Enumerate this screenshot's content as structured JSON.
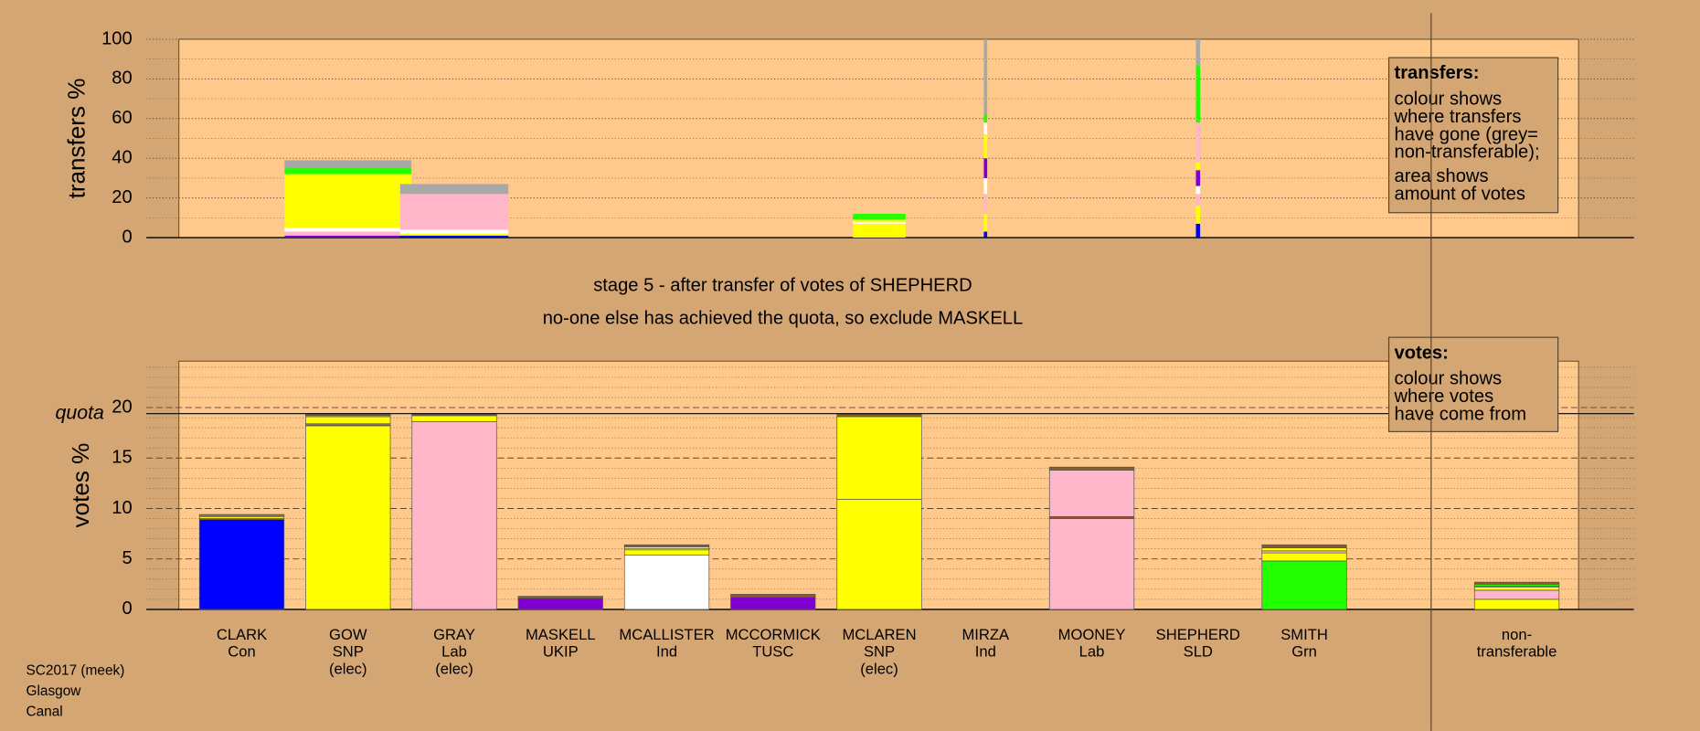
{
  "chart_data": [
    {
      "type": "bar",
      "stacked": true,
      "ylabel": "transfers %",
      "ylim": [
        0,
        100
      ],
      "yticks": [
        0,
        20,
        40,
        60,
        80,
        100
      ],
      "minor_grid": 10,
      "note_title": "transfers:",
      "note_lines": [
        "colour shows",
        "where transfers",
        "have gone (grey=",
        "non-transferable);",
        "area shows",
        "amount of votes"
      ],
      "stacks": [
        {
          "segments": []
        },
        {
          "width": 1.5,
          "segments": [
            {
              "color": "#8000d0",
              "value": 1
            },
            {
              "color": "#ffb6c8",
              "value": 2
            },
            {
              "color": "#ffffff",
              "value": 2
            },
            {
              "color": "#ffff00",
              "value": 27
            },
            {
              "color": "#22ff00",
              "value": 3
            },
            {
              "color": "#a8a8a8",
              "value": 4
            }
          ]
        },
        {
          "width": 1.28,
          "segments": [
            {
              "color": "#0000ff",
              "value": 1
            },
            {
              "color": "#ffff00",
              "value": 1
            },
            {
              "color": "#ffffff",
              "value": 2
            },
            {
              "color": "#ffb6c8",
              "value": 18
            },
            {
              "color": "#a8a8a8",
              "value": 5
            }
          ]
        },
        {
          "segments": []
        },
        {
          "segments": []
        },
        {
          "segments": []
        },
        {
          "width": 0.62,
          "segments": [
            {
              "color": "#ffff00",
              "value": 7
            },
            {
              "color": "#ffffff",
              "value": 1
            },
            {
              "color": "#ffff00",
              "value": 1
            },
            {
              "color": "#22ff00",
              "value": 3
            }
          ]
        },
        {
          "width": 0.04,
          "segments": [
            {
              "color": "#0000ff",
              "value": 3
            },
            {
              "color": "#ffff00",
              "value": 9
            },
            {
              "color": "#ffb6c8",
              "value": 10
            },
            {
              "color": "#ffffff",
              "value": 8
            },
            {
              "color": "#8000d0",
              "value": 10
            },
            {
              "color": "#ffff00",
              "value": 12
            },
            {
              "color": "#ffffff",
              "value": 6
            },
            {
              "color": "#22ff00",
              "value": 4
            },
            {
              "color": "#a8a8a8",
              "value": 38
            }
          ]
        },
        {
          "segments": []
        },
        {
          "width": 0.05,
          "segments": [
            {
              "color": "#0000ff",
              "value": 7
            },
            {
              "color": "#ffff00",
              "value": 9
            },
            {
              "color": "#ffb6c8",
              "value": 6
            },
            {
              "color": "#ffffff",
              "value": 4
            },
            {
              "color": "#8000d0",
              "value": 8
            },
            {
              "color": "#ffff00",
              "value": 4
            },
            {
              "color": "#ffb6c8",
              "value": 20
            },
            {
              "color": "#22ff00",
              "value": 29
            },
            {
              "color": "#a8a8a8",
              "value": 13
            }
          ]
        },
        {
          "segments": []
        },
        {
          "segments": []
        }
      ]
    },
    {
      "type": "bar",
      "stacked": true,
      "ylabel": "votes %",
      "ylim": [
        0,
        24.6
      ],
      "yticks": [
        0,
        5,
        10,
        15,
        20
      ],
      "minor_grid": 1,
      "quota": 19.4,
      "quota_label": "quota",
      "note_title": "votes:",
      "note_lines": [
        "colour shows",
        "where votes",
        "have come from"
      ],
      "categories": [
        [
          "CLARK",
          "Con"
        ],
        [
          "GOW",
          "SNP",
          "(elec)"
        ],
        [
          "GRAY",
          "Lab",
          "(elec)"
        ],
        [
          "MASKELL",
          "UKIP"
        ],
        [
          "MCALLISTER",
          "Ind"
        ],
        [
          "MCCORMICK",
          "TUSC"
        ],
        [
          "MCLAREN",
          "SNP",
          "(elec)"
        ],
        [
          "MIRZA",
          "Ind"
        ],
        [
          "MOONEY",
          "Lab"
        ],
        [
          "SHEPHERD",
          "SLD"
        ],
        [
          "SMITH",
          "Grn"
        ],
        [
          "non-",
          "transferable"
        ]
      ],
      "stacks": [
        {
          "segments": [
            {
              "color": "#0000ff",
              "value": 8.9
            },
            {
              "color": "#8b5a2b",
              "value": 0.1
            },
            {
              "color": "#ffff00",
              "value": 0.2
            },
            {
              "color": "#ffb6c8",
              "value": 0.1
            },
            {
              "color": "#8b5a2b",
              "value": 0.1
            }
          ]
        },
        {
          "segments": [
            {
              "color": "#ffff00",
              "value": 18.2
            },
            {
              "color": "#8b5a2b",
              "value": 0.1
            },
            {
              "color": "#ffb6c8",
              "value": 0.1
            },
            {
              "color": "#ffff00",
              "value": 0.7
            },
            {
              "color": "#ffffff",
              "value": 0.1
            },
            {
              "color": "#8b5a2b",
              "value": 0.2
            }
          ]
        },
        {
          "segments": [
            {
              "color": "#ffb6c8",
              "value": 18.6
            },
            {
              "color": "#ffff00",
              "value": 0.6
            },
            {
              "color": "#8b5a2b",
              "value": 0.2
            }
          ]
        },
        {
          "segments": [
            {
              "color": "#8000d0",
              "value": 1.1
            },
            {
              "color": "#8b5a2b",
              "value": 0.2
            }
          ]
        },
        {
          "segments": [
            {
              "color": "#ffffff",
              "value": 5.4
            },
            {
              "color": "#ffff00",
              "value": 0.5
            },
            {
              "color": "#ffffff",
              "value": 0.1
            },
            {
              "color": "#ffff00",
              "value": 0.2
            },
            {
              "color": "#8b5a2b",
              "value": 0.2
            }
          ]
        },
        {
          "segments": [
            {
              "color": "#8000d0",
              "value": 1.2
            },
            {
              "color": "#8b5a2b",
              "value": 0.3
            }
          ]
        },
        {
          "segments": [
            {
              "color": "#ffff00",
              "value": 10.9
            },
            {
              "color": "#ffff00",
              "value": 8.2
            },
            {
              "color": "#8b5a2b",
              "value": 0.3
            }
          ]
        },
        {
          "segments": []
        },
        {
          "segments": [
            {
              "color": "#ffb6c8",
              "value": 9.0
            },
            {
              "color": "#8b5a2b",
              "value": 0.2
            },
            {
              "color": "#ffb6c8",
              "value": 4.6
            },
            {
              "color": "#8b5a2b",
              "value": 0.3
            }
          ]
        },
        {
          "segments": []
        },
        {
          "segments": [
            {
              "color": "#22ff00",
              "value": 4.8
            },
            {
              "color": "#ffff00",
              "value": 0.8
            },
            {
              "color": "#ffb6c8",
              "value": 0.2
            },
            {
              "color": "#ffff00",
              "value": 0.3
            },
            {
              "color": "#8b5a2b",
              "value": 0.3
            }
          ]
        },
        {
          "segments": [
            {
              "color": "#ffff00",
              "value": 1.0
            },
            {
              "color": "#ffb6c8",
              "value": 0.9
            },
            {
              "color": "#ffff00",
              "value": 0.3
            },
            {
              "color": "#ffffff",
              "value": 0.1
            },
            {
              "color": "#22ff00",
              "value": 0.2
            },
            {
              "color": "#8b5a2b",
              "value": 0.2
            }
          ]
        }
      ]
    }
  ],
  "stage_lines": [
    "stage 5 - after transfer of votes of SHEPHERD",
    "no-one else has achieved the quota, so exclude MASKELL"
  ],
  "footer": [
    "SC2017 (meek)",
    "Glasgow",
    "Canal"
  ]
}
